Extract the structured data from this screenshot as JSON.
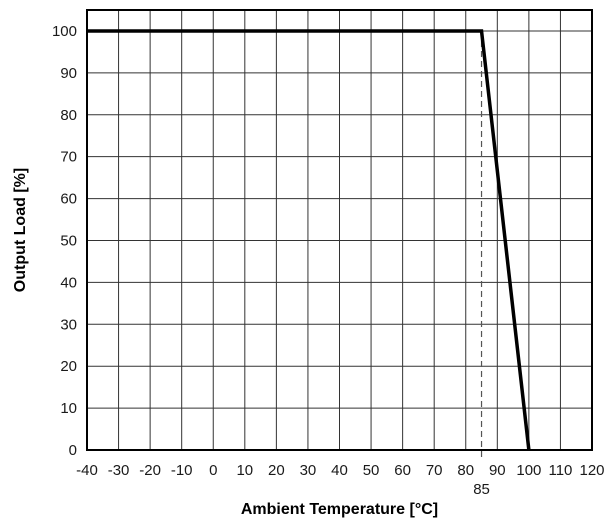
{
  "chart_data": {
    "type": "line",
    "title": "",
    "xlabel": "Ambient Temperature [°C]",
    "ylabel": "Output Load [%]",
    "xlim": [
      -40,
      120
    ],
    "ylim": [
      0,
      105
    ],
    "x_ticks": [
      -40,
      -30,
      -20,
      -10,
      0,
      10,
      20,
      30,
      40,
      50,
      60,
      70,
      80,
      90,
      100,
      110,
      120
    ],
    "y_ticks": [
      0,
      10,
      20,
      30,
      40,
      50,
      60,
      70,
      80,
      90,
      100
    ],
    "grid": true,
    "series": [
      {
        "x": [
          -40,
          85,
          100
        ],
        "y": [
          100,
          100,
          0
        ]
      }
    ],
    "annotations": [
      {
        "type": "vertical-dashed-line",
        "x": 85,
        "label": "85"
      }
    ],
    "colors": {
      "line": "#000000",
      "grid": "#333333",
      "dashed": "#555555"
    }
  }
}
